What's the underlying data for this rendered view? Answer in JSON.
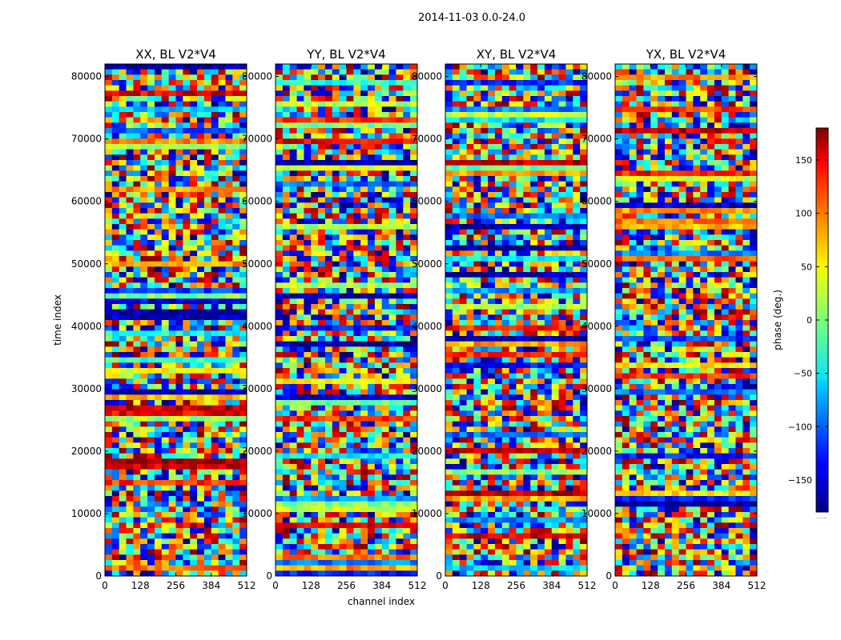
{
  "chart_data": {
    "type": "heatmap",
    "suptitle": "2014-11-03 0.0-24.0",
    "xlabel": "channel index",
    "ylabel": "time index",
    "xlim": [
      0,
      512
    ],
    "ylim": [
      0,
      82000
    ],
    "xticks": [
      0,
      128,
      256,
      384,
      512
    ],
    "yticks": [
      0,
      10000,
      20000,
      30000,
      40000,
      50000,
      60000,
      70000,
      80000
    ],
    "panels": [
      {
        "title": "XX, BL V2*V4"
      },
      {
        "title": "YY, BL V2*V4"
      },
      {
        "title": "XY, BL V2*V4"
      },
      {
        "title": "YX, BL V2*V4"
      }
    ],
    "colorbar": {
      "label": "phase (deg.)",
      "colormap": "jet",
      "range": [
        -180,
        180
      ],
      "ticks": [
        150,
        100,
        50,
        0,
        -50,
        -100,
        -150
      ],
      "tick_labels": [
        "150",
        "100",
        "50",
        "0",
        "−50",
        "−100",
        "−150"
      ],
      "extend_note": "......"
    }
  }
}
